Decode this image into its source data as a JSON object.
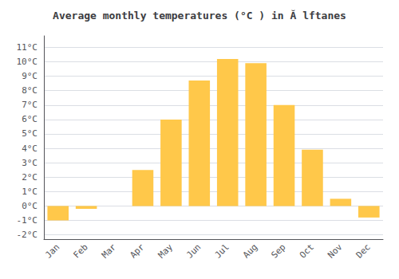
{
  "chart_data": {
    "type": "bar",
    "title": "Average monthly temperatures (°C ) in Ă lftanes",
    "categories": [
      "Jan",
      "Feb",
      "Mar",
      "Apr",
      "May",
      "Jun",
      "Jul",
      "Aug",
      "Sep",
      "Oct",
      "Nov",
      "Dec"
    ],
    "values": [
      -1.0,
      -0.2,
      0.0,
      2.5,
      6.0,
      8.7,
      10.2,
      9.9,
      7.0,
      3.9,
      0.5,
      -0.8
    ],
    "color": "#FFC84A",
    "ylim": [
      -2.3,
      11.8
    ],
    "yticks": [
      {
        "value": -2,
        "label": "-2°C"
      },
      {
        "value": -1,
        "label": "-1°C"
      },
      {
        "value": 0,
        "label": "0°C"
      },
      {
        "value": 1,
        "label": "1°C"
      },
      {
        "value": 2,
        "label": "2°C"
      },
      {
        "value": 3,
        "label": "3°C"
      },
      {
        "value": 4,
        "label": "4°C"
      },
      {
        "value": 5,
        "label": "5°C"
      },
      {
        "value": 6,
        "label": "6°C"
      },
      {
        "value": 7,
        "label": "7°C"
      },
      {
        "value": 8,
        "label": "8°C"
      },
      {
        "value": 9,
        "label": "9°C"
      },
      {
        "value": 10,
        "label": "10°C"
      },
      {
        "value": 11,
        "label": "11°C"
      }
    ],
    "grid": true
  }
}
